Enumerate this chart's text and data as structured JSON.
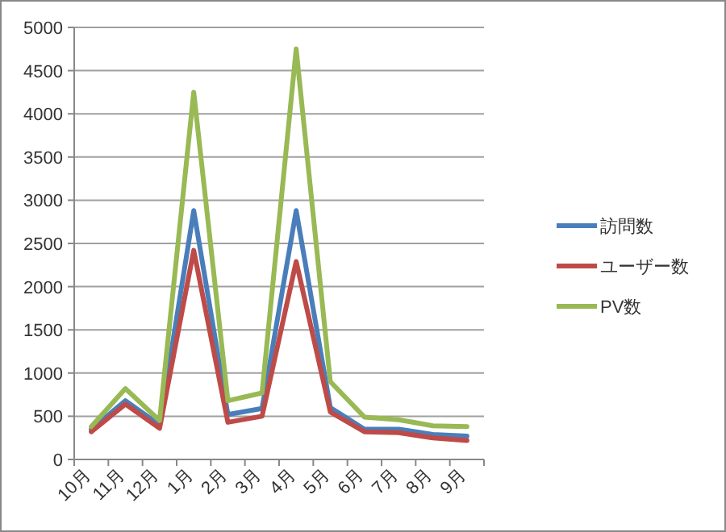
{
  "chart_data": {
    "type": "line",
    "categories": [
      "10月",
      "11月",
      "12月",
      "1月",
      "2月",
      "3月",
      "4月",
      "5月",
      "6月",
      "7月",
      "8月",
      "9月"
    ],
    "series": [
      {
        "name": "訪問数",
        "color": "#4a7ebb",
        "values": [
          350,
          680,
          400,
          2880,
          520,
          590,
          2880,
          600,
          350,
          350,
          290,
          270
        ]
      },
      {
        "name": "ユーザー数",
        "color": "#be4b48",
        "values": [
          320,
          640,
          360,
          2420,
          430,
          500,
          2290,
          550,
          320,
          310,
          250,
          220
        ]
      },
      {
        "name": "PV数",
        "color": "#98b954",
        "values": [
          380,
          820,
          450,
          4250,
          680,
          770,
          4750,
          900,
          490,
          460,
          390,
          380
        ]
      }
    ],
    "ylim": [
      0,
      5000
    ],
    "yticks": [
      0,
      500,
      1000,
      1500,
      2000,
      2500,
      3000,
      3500,
      4000,
      4500,
      5000
    ],
    "grid": "y",
    "legend": "right",
    "marker": "none",
    "line_style": "solid"
  }
}
